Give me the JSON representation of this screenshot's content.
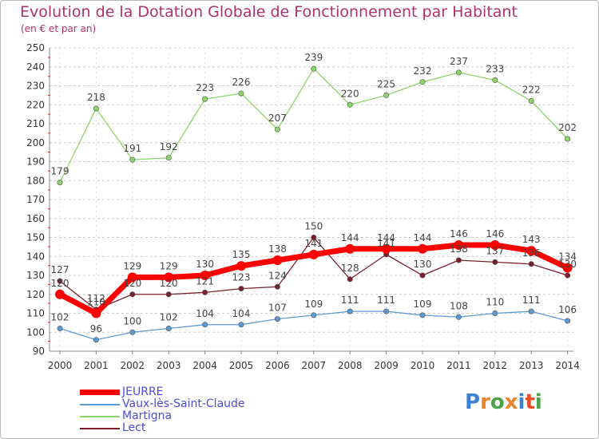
{
  "header": {
    "title": "Evolution de la Dotation Globale de Fonctionnement par Habitant",
    "subtitle": "(en € et par an)"
  },
  "logo": {
    "text": "Proxiti"
  },
  "chart_data": {
    "type": "line",
    "title": "Evolution de la Dotation Globale de Fonctionnement par Habitant",
    "subtitle": "(en € et par an)",
    "xlabel": "",
    "ylabel": "",
    "x": [
      "2000",
      "2001",
      "2002",
      "2003",
      "2004",
      "2005",
      "2006",
      "2007",
      "2008",
      "2009",
      "2010",
      "2011",
      "2012",
      "2013",
      "2014"
    ],
    "ylim": [
      90,
      250
    ],
    "yticks": [
      90,
      100,
      110,
      120,
      130,
      140,
      150,
      160,
      170,
      180,
      190,
      200,
      210,
      220,
      230,
      240,
      250
    ],
    "grid": "horizontal-dashed",
    "legend_position": "bottom-left",
    "series": [
      {
        "name": "JEURRE",
        "color": "#ff0000",
        "values": [
          120,
          110,
          129,
          129,
          130,
          135,
          138,
          141,
          144,
          144,
          144,
          146,
          146,
          143,
          134
        ],
        "labels": [
          "120",
          "110",
          "129",
          "129",
          "130",
          "135",
          "138",
          "141",
          "144",
          "144",
          "144",
          "146",
          "146",
          "143",
          "134"
        ]
      },
      {
        "name": "Vaux-lès-Saint-Claude",
        "color": "#5b9bd5",
        "values": [
          102,
          96,
          100,
          102,
          104,
          104,
          107,
          109,
          111,
          111,
          109,
          108,
          110,
          111,
          106
        ],
        "labels": [
          "102",
          "96",
          "100",
          "102",
          "104",
          "104",
          "107",
          "109",
          "111",
          "111",
          "109",
          "108",
          "110",
          "111",
          "106"
        ]
      },
      {
        "name": "Martigna",
        "color": "#8cd66b",
        "values": [
          179,
          218,
          191,
          192,
          223,
          226,
          207,
          239,
          220,
          225,
          232,
          237,
          233,
          222,
          202
        ],
        "labels": [
          "179",
          "218",
          "191",
          "192",
          "223",
          "226",
          "207",
          "239",
          "220",
          "225",
          "232",
          "237",
          "233",
          "222",
          "202"
        ]
      },
      {
        "name": "Lect",
        "color": "#7b1f2e",
        "values": [
          127,
          112,
          120,
          120,
          121,
          123,
          124,
          150,
          128,
          141,
          130,
          138,
          137,
          136,
          130
        ],
        "labels": [
          "127",
          "112",
          "120",
          "120",
          "121",
          "123",
          "124",
          "150",
          "128",
          "141",
          "130",
          "138",
          "137",
          "136",
          "130"
        ]
      }
    ]
  }
}
